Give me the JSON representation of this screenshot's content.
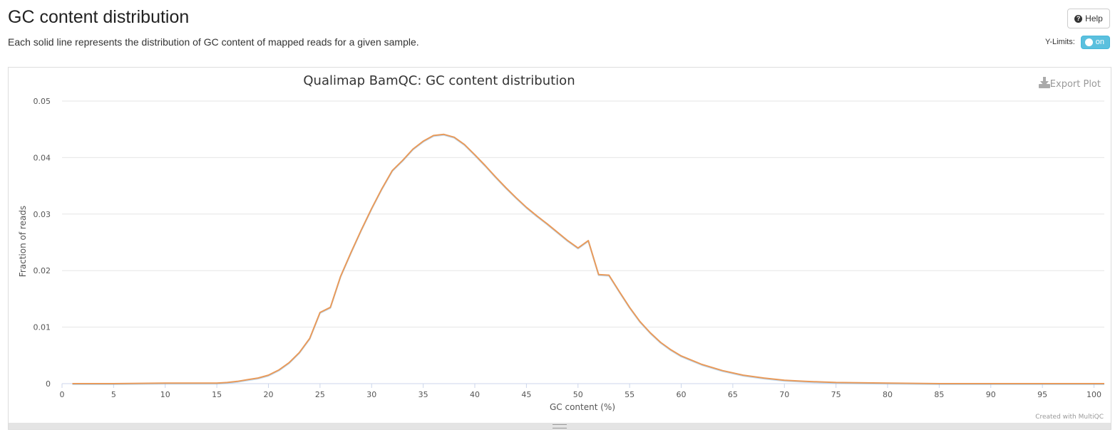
{
  "header": {
    "title": "GC content distribution",
    "description": "Each solid line represents the distribution of GC content of mapped reads for a given sample.",
    "help_label": "Help",
    "ylimits_label": "Y-Limits:",
    "toggle_label": "on"
  },
  "plot": {
    "export_label": "Export Plot",
    "credit": "Created with MultiQC"
  },
  "colors": {
    "series": "#e89a5a",
    "series_shadow": "#7cb5ec",
    "toggle": "#5bc0de"
  },
  "chart_data": {
    "type": "line",
    "title": "Qualimap BamQC: GC content distribution",
    "xlabel": "GC content (%)",
    "ylabel": "Fraction of reads",
    "xlim": [
      0,
      101
    ],
    "ylim": [
      0,
      0.05
    ],
    "x_ticks": [
      0,
      5,
      10,
      15,
      20,
      25,
      30,
      35,
      40,
      45,
      50,
      55,
      60,
      65,
      70,
      75,
      80,
      85,
      90,
      95,
      100
    ],
    "y_ticks": [
      0,
      0.01,
      0.02,
      0.03,
      0.04,
      0.05
    ],
    "y_tick_labels": [
      "0",
      "0.01",
      "0.02",
      "0.03",
      "0.04",
      "0.05"
    ],
    "grid": true,
    "series": [
      {
        "x": [
          1,
          5,
          10,
          15,
          16,
          17,
          18,
          19,
          20,
          21,
          22,
          23,
          24,
          25,
          26,
          27,
          28,
          29,
          30,
          31,
          32,
          33,
          34,
          35,
          36,
          37,
          38,
          39,
          40,
          41,
          42,
          43,
          44,
          45,
          46,
          47,
          48,
          49,
          50,
          51,
          52,
          53,
          54,
          55,
          56,
          57,
          58,
          59,
          60,
          62,
          64,
          66,
          68,
          70,
          72,
          75,
          80,
          85,
          90,
          95,
          101
        ],
        "values": [
          0.0,
          0.0,
          0.0001,
          0.0001,
          0.0002,
          0.0004,
          0.0007,
          0.001,
          0.0015,
          0.0024,
          0.0037,
          0.0055,
          0.008,
          0.0126,
          0.0135,
          0.019,
          0.0232,
          0.0272,
          0.031,
          0.0345,
          0.0377,
          0.0395,
          0.0415,
          0.0429,
          0.0439,
          0.0441,
          0.0436,
          0.0423,
          0.0405,
          0.0386,
          0.0366,
          0.0347,
          0.0329,
          0.0312,
          0.0297,
          0.0283,
          0.0268,
          0.0253,
          0.024,
          0.0253,
          0.0193,
          0.0192,
          0.0163,
          0.0135,
          0.011,
          0.009,
          0.0073,
          0.006,
          0.0049,
          0.0034,
          0.0023,
          0.0015,
          0.001,
          0.0006,
          0.0004,
          0.0002,
          0.0001,
          0.0,
          0.0,
          0.0,
          0.0
        ]
      }
    ]
  }
}
